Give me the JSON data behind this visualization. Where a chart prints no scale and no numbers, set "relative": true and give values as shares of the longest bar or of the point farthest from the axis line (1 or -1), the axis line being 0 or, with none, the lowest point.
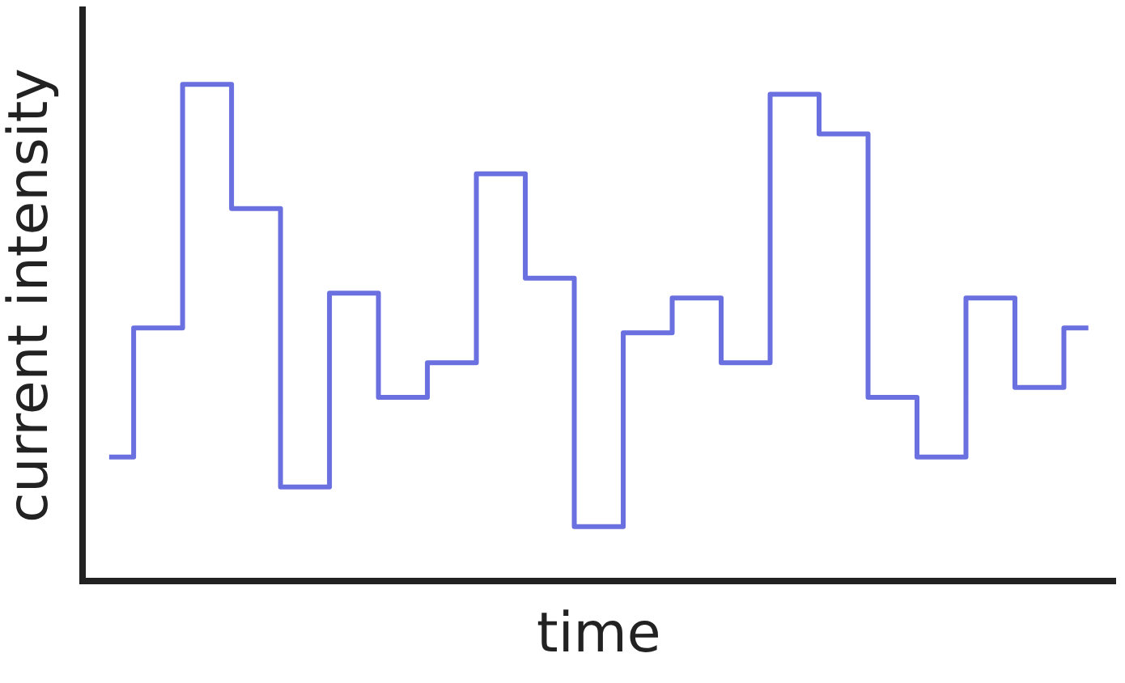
{
  "chart_data": {
    "type": "step",
    "xlabel": "time",
    "ylabel": "current intensity",
    "relative": true,
    "grid": false,
    "legend": false,
    "tick_labels": false,
    "categories": [
      null,
      null,
      null,
      null,
      null,
      null,
      null,
      null,
      null,
      null,
      null,
      null,
      null,
      null,
      null,
      null,
      null,
      null,
      null,
      null,
      null
    ],
    "series": [
      {
        "color": "#6b70e0",
        "values": [
          0.25,
          0.51,
          1,
          0.75,
          0.19,
          0.58,
          0.37,
          0.44,
          0.82,
          0.61,
          0.11,
          0.5,
          0.57,
          0.44,
          0.98,
          0.9,
          0.37,
          0.25,
          0.57,
          0.39,
          0.51
        ]
      }
    ]
  }
}
